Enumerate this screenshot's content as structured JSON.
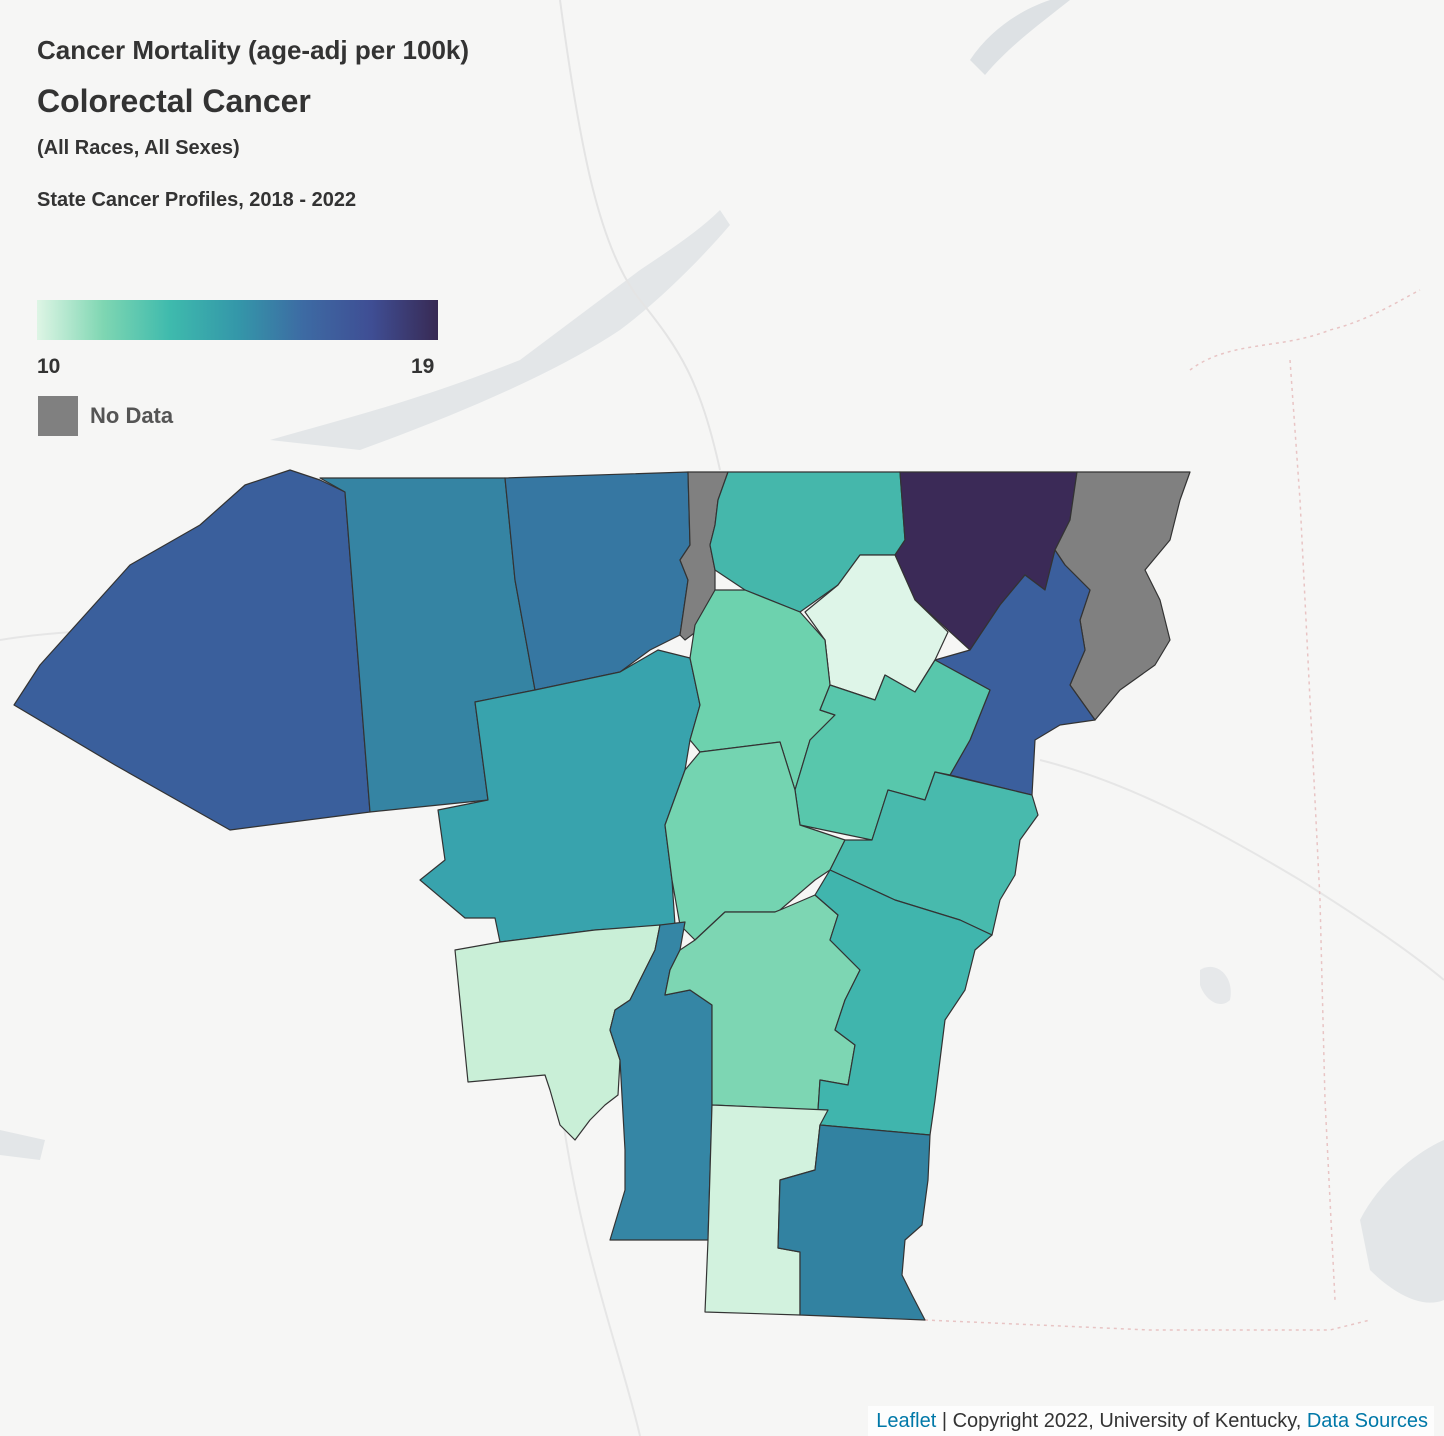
{
  "legend": {
    "title_measure": "Cancer Mortality (age-adj per 100k)",
    "title_cancer": "Colorectal Cancer",
    "demographics": "(All Races, All Sexes)",
    "source": "State Cancer Profiles, 2018 - 2022",
    "min_label": "10",
    "max_label": "19",
    "nodata_label": "No Data",
    "nodata_color": "#808080",
    "gradient_colors": [
      "#def5e5",
      "#7ed6b2",
      "#3ebaad",
      "#3497a9",
      "#3d6aa3",
      "#3f4e94",
      "#382a54"
    ]
  },
  "attribution": {
    "leaflet": "Leaflet",
    "separator": " | ",
    "copyright": "Copyright 2022, University of Kentucky, ",
    "data_sources": "Data Sources"
  },
  "regions": [
    {
      "id": "west-large",
      "fill": "#3a5f9c"
    },
    {
      "id": "north-2",
      "fill": "#3584a3"
    },
    {
      "id": "north-3",
      "fill": "#3677a2"
    },
    {
      "id": "nodata-slice",
      "fill": "#808080"
    },
    {
      "id": "north-5",
      "fill": "#45b7ab"
    },
    {
      "id": "northeast-dark",
      "fill": "#3b2a57"
    },
    {
      "id": "nodata-east",
      "fill": "#808080"
    },
    {
      "id": "east-blue",
      "fill": "#3b5f9d"
    },
    {
      "id": "pale-north",
      "fill": "#def5e8"
    },
    {
      "id": "mid-teal",
      "fill": "#38a3ad"
    },
    {
      "id": "center-mint-1",
      "fill": "#6dd2ae"
    },
    {
      "id": "center-east-1",
      "fill": "#58c7ac"
    },
    {
      "id": "center-mint-2",
      "fill": "#74d4b1"
    },
    {
      "id": "center-east-2",
      "fill": "#48baad"
    },
    {
      "id": "southwest-pale",
      "fill": "#c9efd7"
    },
    {
      "id": "south-center",
      "fill": "#7dd6b3"
    },
    {
      "id": "south-east-teal",
      "fill": "#40b5ad"
    },
    {
      "id": "south-narrow",
      "fill": "#3586a5"
    },
    {
      "id": "south-pale",
      "fill": "#d2f2de"
    },
    {
      "id": "south-blue",
      "fill": "#3282a1"
    }
  ]
}
